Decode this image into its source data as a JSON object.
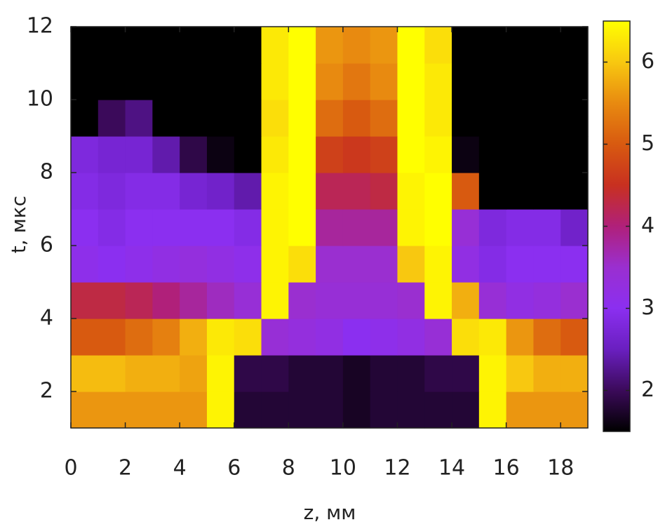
{
  "chart_data": {
    "type": "heatmap",
    "x_label": "z, мм",
    "y_label": "t, мкс",
    "x": [
      0,
      1,
      2,
      3,
      4,
      5,
      6,
      7,
      8,
      9,
      10,
      11,
      12,
      13,
      14,
      15,
      16,
      17,
      18,
      19
    ],
    "y": [
      1,
      2,
      3,
      4,
      5,
      6,
      7,
      8,
      9,
      10,
      11,
      12
    ],
    "z": [
      [
        5.6,
        5.6,
        5.6,
        5.6,
        5.6,
        6.4,
        1.8,
        1.8,
        1.8,
        1.8,
        1.7,
        1.8,
        1.8,
        1.8,
        1.8,
        6.4,
        5.6,
        5.6,
        5.6
      ],
      [
        5.9,
        5.9,
        5.8,
        5.8,
        5.7,
        6.4,
        1.9,
        1.9,
        1.8,
        1.8,
        1.7,
        1.8,
        1.8,
        1.9,
        1.9,
        6.4,
        6.0,
        5.8,
        5.8
      ],
      [
        5.0,
        5.0,
        5.2,
        5.4,
        5.8,
        6.3,
        6.2,
        3.4,
        3.3,
        3.2,
        3.0,
        3.1,
        3.2,
        3.4,
        6.2,
        6.3,
        5.6,
        5.2,
        5.0
      ],
      [
        4.3,
        4.3,
        4.2,
        4.0,
        3.8,
        3.6,
        3.4,
        6.4,
        3.5,
        3.4,
        3.4,
        3.4,
        3.5,
        6.4,
        5.8,
        3.4,
        3.2,
        3.3,
        3.5
      ],
      [
        3.1,
        3.0,
        3.1,
        3.2,
        3.3,
        3.2,
        3.1,
        6.4,
        6.2,
        3.5,
        3.5,
        3.5,
        6.0,
        6.4,
        3.2,
        2.9,
        3.0,
        3.0,
        3.0
      ],
      [
        3.0,
        2.9,
        3.0,
        3.0,
        3.0,
        3.0,
        2.9,
        6.4,
        6.5,
        3.8,
        3.8,
        3.8,
        6.4,
        6.5,
        3.4,
        2.8,
        2.9,
        2.9,
        2.6
      ],
      [
        2.9,
        2.8,
        2.9,
        2.9,
        2.7,
        2.6,
        2.4,
        6.4,
        6.5,
        4.2,
        4.2,
        4.3,
        6.4,
        6.5,
        5.0,
        1.5,
        1.5,
        1.5,
        1.5
      ],
      [
        2.8,
        2.7,
        2.7,
        2.4,
        1.9,
        1.6,
        1.5,
        6.3,
        6.5,
        4.7,
        4.6,
        4.7,
        6.5,
        6.4,
        1.6,
        1.5,
        1.5,
        1.5,
        1.5
      ],
      [
        1.5,
        2.0,
        2.2,
        1.5,
        1.5,
        1.5,
        1.5,
        6.2,
        6.5,
        5.2,
        5.0,
        5.2,
        6.5,
        6.3,
        1.5,
        1.5,
        1.5,
        1.5,
        1.5
      ],
      [
        1.5,
        1.5,
        1.5,
        1.5,
        1.5,
        1.5,
        1.5,
        6.3,
        6.5,
        5.5,
        5.3,
        5.5,
        6.5,
        6.3,
        1.5,
        1.5,
        1.5,
        1.5,
        1.5
      ],
      [
        1.5,
        1.5,
        1.5,
        1.5,
        1.5,
        1.5,
        1.5,
        6.3,
        6.5,
        5.6,
        5.5,
        5.6,
        6.5,
        6.2,
        1.5,
        1.5,
        1.5,
        1.5,
        1.5
      ]
    ],
    "xlim": [
      0,
      19
    ],
    "xticks": [
      0,
      2,
      4,
      6,
      8,
      10,
      12,
      14,
      16,
      18
    ],
    "ylim": [
      1,
      12
    ],
    "yticks": [
      2,
      4,
      6,
      8,
      10,
      12
    ],
    "clim": [
      1.5,
      6.5
    ],
    "cticks": [
      2,
      3,
      4,
      5,
      6
    ],
    "colormap": [
      "#000000",
      "#3b0a5a",
      "#6a1fc0",
      "#8b2ff0",
      "#9a2fd0",
      "#b0207a",
      "#c83020",
      "#d85a10",
      "#e88a10",
      "#f8c810",
      "#ffff00"
    ]
  }
}
